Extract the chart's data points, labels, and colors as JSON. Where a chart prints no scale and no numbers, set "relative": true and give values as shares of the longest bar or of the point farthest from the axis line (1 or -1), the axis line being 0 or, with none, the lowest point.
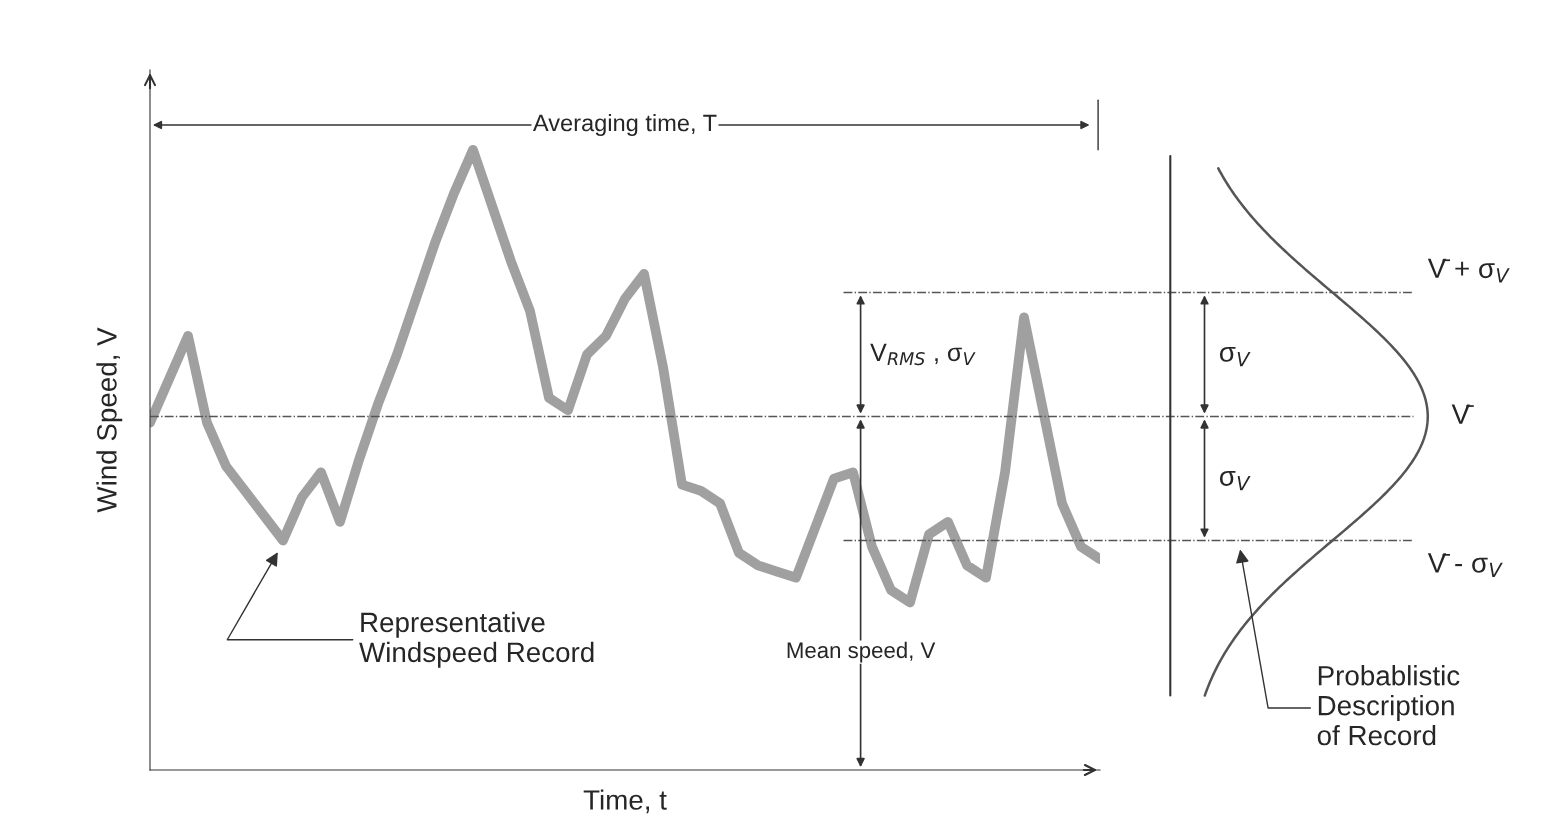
{
  "chart_data": {
    "type": "line",
    "relative": true,
    "xlabel": "Time, t",
    "ylabel": "Wind Speed, V",
    "tick_labels": false,
    "legend": false,
    "marker": "none",
    "line_style": "solid",
    "categories": [
      null,
      null,
      null,
      null,
      null,
      null,
      null,
      null,
      null,
      null,
      null,
      null,
      null,
      null,
      null,
      null,
      null,
      null,
      null,
      null,
      null,
      null,
      null,
      null,
      null,
      null,
      null,
      null,
      null,
      null,
      null,
      null,
      null,
      null,
      null,
      null,
      null,
      null,
      null,
      null,
      null,
      null,
      null,
      null,
      null,
      null,
      null,
      null,
      null,
      null,
      null
    ],
    "series": [
      {
        "color": "#a0a0a0",
        "values": [
          0.56,
          0.63,
          0.7,
          0.56,
          0.49,
          0.45,
          0.41,
          0.37,
          0.44,
          0.48,
          0.4,
          0.5,
          0.59,
          0.67,
          0.76,
          0.85,
          0.93,
          1.0,
          0.91,
          0.82,
          0.74,
          0.6,
          0.58,
          0.67,
          0.7,
          0.76,
          0.8,
          0.65,
          0.46,
          0.45,
          0.43,
          0.35,
          0.33,
          0.32,
          0.31,
          0.39,
          0.47,
          0.48,
          0.36,
          0.29,
          0.27,
          0.38,
          0.4,
          0.33,
          0.31,
          0.48,
          0.73,
          0.58,
          0.43,
          0.36,
          0.34
        ]
      }
    ],
    "ref_lines": [
      {
        "axis": "y",
        "value": 0.77,
        "label": "V̄ + σ$_{V}$",
        "color": "#555555",
        "line_style": "dashdot"
      },
      {
        "axis": "y",
        "value": 0.57,
        "label": "V̄",
        "color": "#555555",
        "line_style": "dashdot"
      },
      {
        "axis": "y",
        "value": 0.37,
        "label": "V̄ - σ$_{V}$",
        "color": "#555555",
        "line_style": "dashdot"
      }
    ],
    "annotations": [
      "Averaging time, T",
      "V$_{RMS}$ , σ$_{V}$",
      "Mean speed, V",
      "Representative\nWindspeed Record",
      "Probablistic\nDescription\nof Record",
      "σ$_{V}$",
      "σ$_{V}$"
    ]
  }
}
